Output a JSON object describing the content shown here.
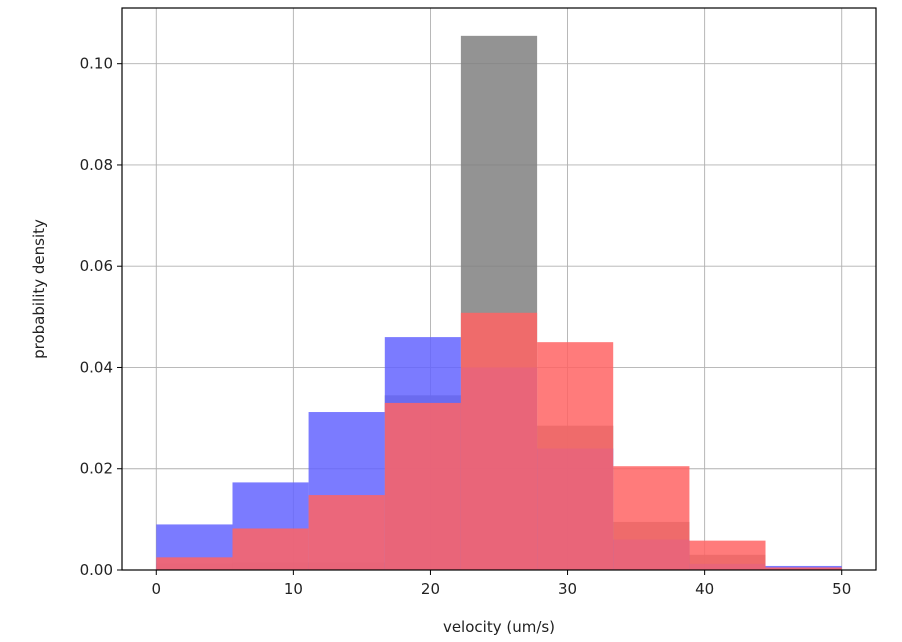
{
  "chart_data": {
    "type": "bar",
    "xlabel": "velocity (um/s)",
    "ylabel": "probability density",
    "xlim": [
      -2.5,
      52.5
    ],
    "ylim": [
      0,
      0.111
    ],
    "grid": true,
    "x_ticks": [
      0,
      10,
      20,
      30,
      40,
      50
    ],
    "y_ticks": [
      0.0,
      0.02,
      0.04,
      0.06,
      0.08,
      0.1
    ],
    "x_tick_labels": [
      "0",
      "10",
      "20",
      "30",
      "40",
      "50"
    ],
    "y_tick_labels": [
      "0.00",
      "0.02",
      "0.04",
      "0.06",
      "0.08",
      "0.10"
    ],
    "bin_edges": [
      0,
      5.56,
      11.11,
      16.67,
      22.22,
      27.78,
      33.33,
      38.89,
      44.44,
      50
    ],
    "series": [
      {
        "color": "#808080",
        "values": [
          0.0013,
          0.0015,
          0.0015,
          0.0345,
          0.1055,
          0.0285,
          0.0095,
          0.003,
          0.0005
        ]
      },
      {
        "color": "#6464ff",
        "values": [
          0.009,
          0.0173,
          0.0312,
          0.046,
          0.04,
          0.024,
          0.006,
          0.0012,
          0.0008
        ]
      },
      {
        "color": "#ff6464",
        "values": [
          0.0025,
          0.0082,
          0.0148,
          0.033,
          0.0508,
          0.045,
          0.0205,
          0.0058,
          0.0005
        ]
      }
    ]
  }
}
